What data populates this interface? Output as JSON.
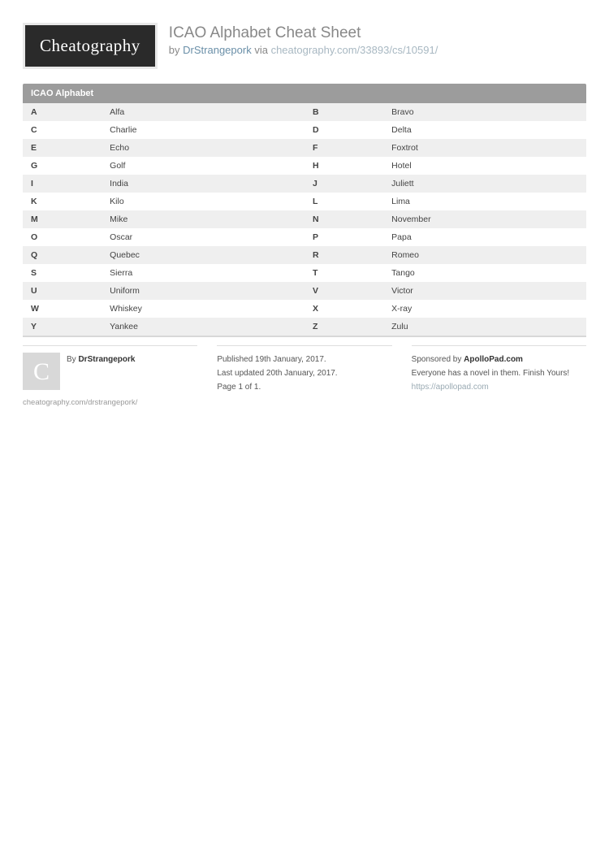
{
  "header": {
    "logo_text": "Cheatography",
    "title": "ICAO Alphabet Cheat Sheet",
    "by_label": "by",
    "author": "DrStrangepork",
    "via_label": "via",
    "url": "cheatography.com/33893/cs/10591/"
  },
  "section": {
    "title": "ICAO Alphabet",
    "header_bg": "#9c9c9c",
    "row_odd_bg": "#efefef",
    "row_even_bg": "#ffffff",
    "rows": [
      {
        "l1": "A",
        "w1": "Alfa",
        "l2": "B",
        "w2": "Bravo"
      },
      {
        "l1": "C",
        "w1": "Charlie",
        "l2": "D",
        "w2": "Delta"
      },
      {
        "l1": "E",
        "w1": "Echo",
        "l2": "F",
        "w2": "Foxtrot"
      },
      {
        "l1": "G",
        "w1": "Golf",
        "l2": "H",
        "w2": "Hotel"
      },
      {
        "l1": "I",
        "w1": "India",
        "l2": "J",
        "w2": "Juliett"
      },
      {
        "l1": "K",
        "w1": "Kilo",
        "l2": "L",
        "w2": "Lima"
      },
      {
        "l1": "M",
        "w1": "Mike",
        "l2": "N",
        "w2": "November"
      },
      {
        "l1": "O",
        "w1": "Oscar",
        "l2": "P",
        "w2": "Papa"
      },
      {
        "l1": "Q",
        "w1": "Quebec",
        "l2": "R",
        "w2": "Romeo"
      },
      {
        "l1": "S",
        "w1": "Sierra",
        "l2": "T",
        "w2": "Tango"
      },
      {
        "l1": "U",
        "w1": "Uniform",
        "l2": "V",
        "w2": "Victor"
      },
      {
        "l1": "W",
        "w1": "Whiskey",
        "l2": "X",
        "w2": "X-ray"
      },
      {
        "l1": "Y",
        "w1": "Yankee",
        "l2": "Z",
        "w2": "Zulu"
      }
    ]
  },
  "footer": {
    "author_col": {
      "by_label": "By",
      "author": "DrStrangepork",
      "avatar_letter": "C",
      "profile_url": "cheatography.com/drstrangepork/"
    },
    "meta_col": {
      "published": "Published 19th January, 2017.",
      "updated": "Last updated 20th January, 2017.",
      "page": "Page 1 of 1."
    },
    "sponsor_col": {
      "label": "Sponsored by",
      "name": "ApolloPad.com",
      "tagline": "Everyone has a novel in them. Finish Yours!",
      "url": "https://apollopad.com"
    }
  }
}
